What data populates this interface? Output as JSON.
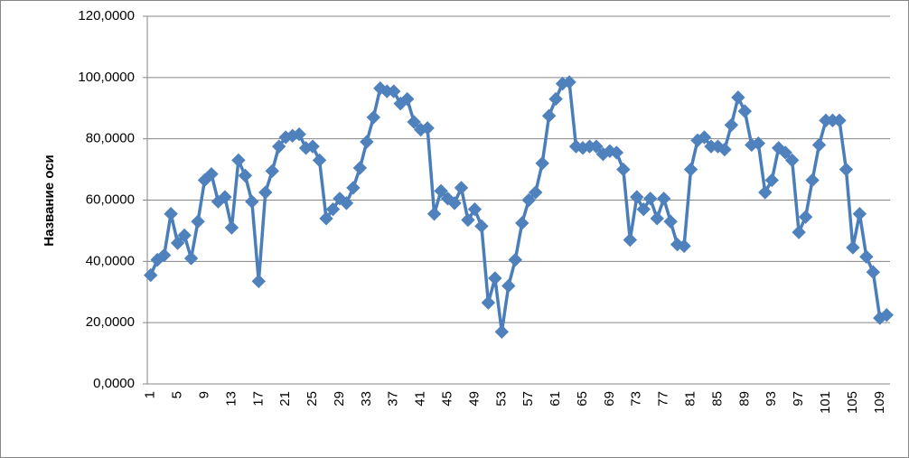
{
  "chart_data": {
    "type": "line",
    "y_axis_label": "Название оси",
    "categories": [
      "1",
      null,
      null,
      null,
      "5",
      null,
      null,
      null,
      "9",
      null,
      null,
      null,
      "13",
      null,
      null,
      null,
      "17",
      null,
      null,
      null,
      "21",
      null,
      null,
      null,
      "25",
      null,
      null,
      null,
      "29",
      null,
      null,
      null,
      "33",
      null,
      null,
      null,
      "37",
      null,
      null,
      null,
      "41",
      null,
      null,
      null,
      "45",
      null,
      null,
      null,
      "49",
      null,
      null,
      null,
      "53",
      null,
      null,
      null,
      "57",
      null,
      null,
      null,
      "61",
      null,
      null,
      null,
      "65",
      null,
      null,
      null,
      "69",
      null,
      null,
      null,
      "73",
      null,
      null,
      null,
      "77",
      null,
      null,
      null,
      "81",
      null,
      null,
      null,
      "85",
      null,
      null,
      null,
      "89",
      null,
      null,
      null,
      "93",
      null,
      null,
      null,
      "97",
      null,
      null,
      null,
      "101",
      null,
      null,
      null,
      "105",
      null,
      null,
      null,
      "109",
      null
    ],
    "series": [
      {
        "color": "#4a7ebb",
        "marker_color": "#4f81bd",
        "values": [
          35.5,
          40.5,
          42,
          55.5,
          46,
          48.5,
          41,
          53,
          66.5,
          68.5,
          59.5,
          61,
          51,
          73,
          68,
          59.5,
          33.5,
          62.5,
          69.5,
          77.5,
          80.5,
          81,
          81.5,
          77,
          77.5,
          73,
          54,
          57,
          60.5,
          59,
          64,
          70.5,
          79,
          87,
          96.5,
          95.5,
          95.5,
          91.5,
          93,
          85.5,
          83,
          83.5,
          55.5,
          63,
          60.5,
          59,
          64,
          53.5,
          57,
          51.5,
          26.5,
          34.5,
          17,
          32,
          40.5,
          52.5,
          60,
          62.5,
          72,
          87.5,
          93,
          98,
          98.5,
          77.5,
          77,
          77.5,
          77.5,
          75,
          76,
          75.5,
          70,
          47,
          61,
          57,
          60.5,
          54,
          60.5,
          53,
          45.5,
          45,
          70,
          79.5,
          80.5,
          77.5,
          77.5,
          76.5,
          84.5,
          93.5,
          89,
          78,
          78.5,
          62.5,
          66.5,
          77,
          75.5,
          73,
          49.5,
          54.5,
          66.5,
          78,
          86,
          86,
          86,
          70,
          44.5,
          55.5,
          41.5,
          36.5,
          21.5,
          22.5
        ]
      }
    ],
    "ylim": [
      0,
      120
    ],
    "yticks": [
      {
        "value": 0,
        "label": "0,0000"
      },
      {
        "value": 20,
        "label": "20,0000"
      },
      {
        "value": 40,
        "label": "40,0000"
      },
      {
        "value": 60,
        "label": "60,0000"
      },
      {
        "value": 80,
        "label": "80,0000"
      },
      {
        "value": 100,
        "label": "100,0000"
      },
      {
        "value": 120,
        "label": "120,0000"
      }
    ],
    "grid": true
  }
}
